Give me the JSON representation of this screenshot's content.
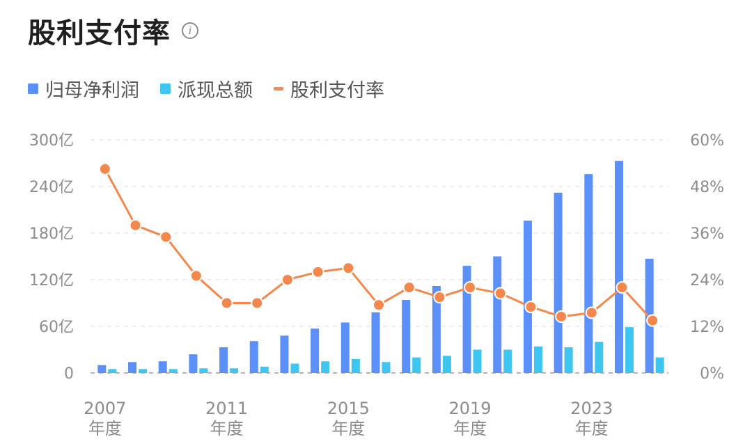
{
  "title": "股利支付率",
  "info_icon": "info-icon",
  "legend": [
    {
      "label": "归母净利润",
      "color": "#5b8ff9",
      "shape": "square"
    },
    {
      "label": "派现总额",
      "color": "#3fc6f0",
      "shape": "square"
    },
    {
      "label": "股利支付率",
      "color": "#f4874b",
      "shape": "line"
    }
  ],
  "chart_data": {
    "type": "bar",
    "categories": [
      "2007",
      "2008",
      "2009",
      "2010",
      "2011",
      "2012",
      "2013",
      "2014",
      "2015",
      "2016",
      "2017",
      "2018",
      "2019",
      "2020",
      "2021",
      "2022",
      "2023",
      "2024",
      "2025"
    ],
    "x_tick_labels": [
      {
        "index": 0,
        "year": "2007",
        "suffix": "年度"
      },
      {
        "index": 4,
        "year": "2011",
        "suffix": "年度"
      },
      {
        "index": 8,
        "year": "2015",
        "suffix": "年度"
      },
      {
        "index": 12,
        "year": "2019",
        "suffix": "年度"
      },
      {
        "index": 16,
        "year": "2023",
        "suffix": "年度"
      }
    ],
    "series": [
      {
        "name": "归母净利润",
        "type": "bar",
        "axis": "left",
        "values": [
          10,
          14,
          15,
          24,
          33,
          41,
          48,
          57,
          65,
          78,
          94,
          112,
          138,
          150,
          196,
          232,
          256,
          273,
          147
        ]
      },
      {
        "name": "派现总额",
        "type": "bar",
        "axis": "left",
        "values": [
          5,
          5,
          5,
          6,
          6,
          8,
          12,
          15,
          18,
          14,
          20,
          22,
          30,
          30,
          34,
          33,
          40,
          59,
          20
        ]
      },
      {
        "name": "股利支付率",
        "type": "line",
        "axis": "right",
        "values": [
          52.5,
          38,
          35,
          25,
          18,
          18,
          24,
          26,
          27,
          17.5,
          22,
          19.5,
          22,
          20.5,
          17,
          14.5,
          15.5,
          22,
          13.5
        ]
      }
    ],
    "y_left": {
      "ticks": [
        "0",
        "60亿",
        "120亿",
        "180亿",
        "240亿",
        "300亿"
      ],
      "range": [
        0,
        300
      ]
    },
    "y_right": {
      "ticks": [
        "0%",
        "12%",
        "24%",
        "36%",
        "48%",
        "60%"
      ],
      "range": [
        0,
        60
      ]
    },
    "grid": "dashed horizontal"
  }
}
